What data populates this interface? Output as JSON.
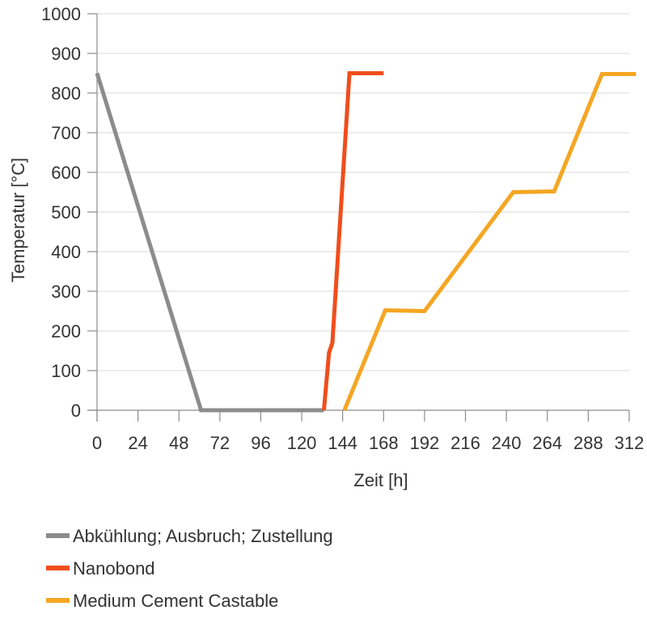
{
  "chart_data": {
    "type": "line",
    "title": "",
    "xlabel": "Zeit [h]",
    "ylabel": "Temperatur [°C]",
    "xlim": [
      0,
      312
    ],
    "ylim": [
      0,
      1000
    ],
    "xticks": [
      0,
      24,
      48,
      72,
      96,
      120,
      144,
      168,
      192,
      216,
      240,
      264,
      288,
      312
    ],
    "yticks": [
      0,
      100,
      200,
      300,
      400,
      500,
      600,
      700,
      800,
      900,
      1000
    ],
    "grid": "horizontal",
    "legend_position": "bottom",
    "series": [
      {
        "name": "Abkühlung; Ausbruch; Zustellung",
        "color": "#8c8c8c",
        "points": [
          [
            0,
            850
          ],
          [
            61,
            0
          ],
          [
            133,
            0
          ]
        ]
      },
      {
        "name": "Nanobond",
        "color": "#f04e1c",
        "points": [
          [
            133,
            0
          ],
          [
            136,
            145
          ],
          [
            138,
            170
          ],
          [
            148,
            850
          ],
          [
            168,
            850
          ]
        ]
      },
      {
        "name": "Medium Cement Castable",
        "color": "#f5a623",
        "points": [
          [
            145,
            0
          ],
          [
            169,
            252
          ],
          [
            192,
            250
          ],
          [
            244,
            550
          ],
          [
            268,
            552
          ],
          [
            296,
            848
          ],
          [
            316,
            848
          ]
        ]
      }
    ]
  }
}
